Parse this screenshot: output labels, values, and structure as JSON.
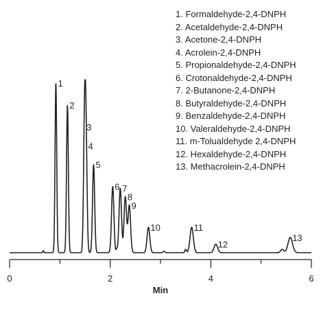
{
  "chart_data": {
    "type": "line",
    "title": "",
    "xlabel": "Min",
    "ylabel": "",
    "xlim": [
      0,
      6
    ],
    "ylim": [
      0,
      1.0
    ],
    "x_ticks": [
      "0",
      "2",
      "4",
      "6"
    ],
    "grid": false,
    "legend_position": "top-right",
    "line_color": "#231f20",
    "series": [
      {
        "peaks": [
          {
            "label": "1",
            "x": 0.92,
            "height": 1.0,
            "legend": "1. Formaldehyde-2,4-DNPH"
          },
          {
            "label": "2",
            "x": 1.15,
            "height": 0.87,
            "legend": "2. Acetaldehyde-2,4-DNPH"
          },
          {
            "label": "3",
            "x": 1.49,
            "height": 0.74,
            "legend": "3. Acetone-2,4-DNPH"
          },
          {
            "label": "4",
            "x": 1.52,
            "height": 0.63,
            "legend": "4. Acrolein-2,4-DNPH"
          },
          {
            "label": "5",
            "x": 1.67,
            "height": 0.52,
            "legend": "5. Propionaldehyde-2,4-DNPH"
          },
          {
            "label": "6",
            "x": 2.05,
            "height": 0.39,
            "legend": "6. Crotonaldehyde-2,4-DNPH"
          },
          {
            "label": "7",
            "x": 2.2,
            "height": 0.38,
            "legend": "7. 2-Butanone-2,4-DNPH"
          },
          {
            "label": "8",
            "x": 2.3,
            "height": 0.33,
            "legend": "8. Butyraldehyde-2,4-DNPH"
          },
          {
            "label": "9",
            "x": 2.38,
            "height": 0.28,
            "legend": "9. Benzaldehyde-2,4-DNPH"
          },
          {
            "label": "10",
            "x": 2.76,
            "height": 0.15,
            "legend": "10. Valeraldehyde-2,4-DNPH"
          },
          {
            "label": "11",
            "x": 3.62,
            "height": 0.15,
            "legend": "11. m-Tolualdehyde 2,4-DNPH"
          },
          {
            "label": "12",
            "x": 4.1,
            "height": 0.05,
            "legend": "12. Hexaldehyde-2,4-DNPH"
          },
          {
            "label": "13",
            "x": 5.58,
            "height": 0.09,
            "legend": "13. Methacrolein-2,4-DNPH"
          }
        ]
      }
    ]
  }
}
